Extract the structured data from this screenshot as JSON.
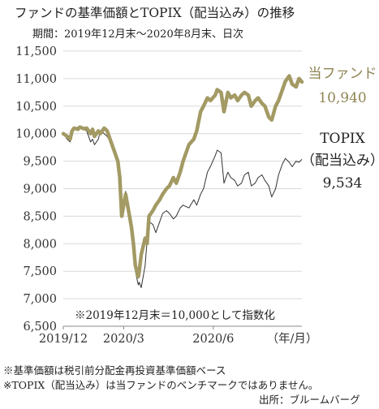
{
  "title": "ファンドの基準価額とTOPIX（配当込み）の推移",
  "subtitle": "期間：2019年12月末～2020年8月末、日次",
  "note": "※2019年12月末＝10,000として指数化",
  "footnotes": [
    "※基準価額は税引前分配金再投資基準価額ベース",
    "※TOPIX（配当込み）は当ファンドのベンチマークではありません。"
  ],
  "source": "出所：ブルームバーグ",
  "colors": {
    "fund": "#a39a64",
    "topix": "#333333",
    "grid": "#d9d9d9"
  },
  "chart_data": {
    "type": "line",
    "yticks": [
      "11,500",
      "11,000",
      "10,500",
      "10,000",
      "9,500",
      "9,000",
      "8,500",
      "8,000",
      "7,500",
      "7,000",
      "6,500"
    ],
    "ylim": [
      6500,
      11500
    ],
    "xlim": [
      "2019-12-30",
      "2020-08-31"
    ],
    "xticks": [
      {
        "date": "2019-12-30",
        "label": "2019/12"
      },
      {
        "date": "2020-03-01",
        "label": "2020/3"
      },
      {
        "date": "2020-06-01",
        "label": "2020/6"
      }
    ],
    "x_unit_label": "（年/月）",
    "series": [
      {
        "name": "当ファンド",
        "end_value_label": "10,940",
        "points": [
          [
            "2019-12-30",
            10000
          ],
          [
            "2020-01-03",
            9950
          ],
          [
            "2020-01-06",
            9900
          ],
          [
            "2020-01-08",
            10050
          ],
          [
            "2020-01-10",
            10100
          ],
          [
            "2020-01-14",
            10080
          ],
          [
            "2020-01-16",
            10120
          ],
          [
            "2020-01-20",
            10090
          ],
          [
            "2020-01-23",
            10100
          ],
          [
            "2020-01-27",
            10000
          ],
          [
            "2020-01-29",
            10080
          ],
          [
            "2020-01-31",
            9950
          ],
          [
            "2020-02-04",
            10050
          ],
          [
            "2020-02-06",
            10000
          ],
          [
            "2020-02-10",
            10100
          ],
          [
            "2020-02-13",
            10050
          ],
          [
            "2020-02-18",
            9800
          ],
          [
            "2020-02-20",
            9700
          ],
          [
            "2020-02-24",
            9500
          ],
          [
            "2020-02-26",
            9200
          ],
          [
            "2020-02-28",
            8500
          ],
          [
            "2020-03-03",
            8900
          ],
          [
            "2020-03-05",
            8700
          ],
          [
            "2020-03-09",
            8300
          ],
          [
            "2020-03-11",
            8000
          ],
          [
            "2020-03-13",
            7600
          ],
          [
            "2020-03-16",
            7400
          ],
          [
            "2020-03-17",
            7500
          ],
          [
            "2020-03-19",
            7800
          ],
          [
            "2020-03-23",
            8100
          ],
          [
            "2020-03-25",
            8000
          ],
          [
            "2020-03-27",
            8500
          ],
          [
            "2020-03-31",
            8600
          ],
          [
            "2020-04-03",
            8700
          ],
          [
            "2020-04-07",
            8800
          ],
          [
            "2020-04-10",
            8900
          ],
          [
            "2020-04-14",
            9000
          ],
          [
            "2020-04-17",
            9050
          ],
          [
            "2020-04-21",
            9200
          ],
          [
            "2020-04-24",
            9100
          ],
          [
            "2020-04-28",
            9300
          ],
          [
            "2020-05-01",
            9500
          ],
          [
            "2020-05-07",
            9800
          ],
          [
            "2020-05-12",
            9900
          ],
          [
            "2020-05-15",
            10050
          ],
          [
            "2020-05-19",
            10400
          ],
          [
            "2020-05-22",
            10500
          ],
          [
            "2020-05-26",
            10650
          ],
          [
            "2020-05-29",
            10600
          ],
          [
            "2020-06-03",
            10700
          ],
          [
            "2020-06-05",
            10800
          ],
          [
            "2020-06-09",
            10750
          ],
          [
            "2020-06-12",
            10400
          ],
          [
            "2020-06-16",
            10750
          ],
          [
            "2020-06-19",
            10650
          ],
          [
            "2020-06-23",
            10700
          ],
          [
            "2020-06-26",
            10600
          ],
          [
            "2020-06-30",
            10700
          ],
          [
            "2020-07-03",
            10750
          ],
          [
            "2020-07-07",
            10700
          ],
          [
            "2020-07-10",
            10500
          ],
          [
            "2020-07-14",
            10600
          ],
          [
            "2020-07-17",
            10650
          ],
          [
            "2020-07-21",
            10550
          ],
          [
            "2020-07-24",
            10500
          ],
          [
            "2020-07-28",
            10300
          ],
          [
            "2020-07-31",
            10250
          ],
          [
            "2020-08-04",
            10500
          ],
          [
            "2020-08-07",
            10600
          ],
          [
            "2020-08-11",
            10800
          ],
          [
            "2020-08-14",
            10950
          ],
          [
            "2020-08-18",
            11050
          ],
          [
            "2020-08-21",
            10900
          ],
          [
            "2020-08-25",
            10850
          ],
          [
            "2020-08-28",
            11000
          ],
          [
            "2020-08-31",
            10940
          ]
        ]
      },
      {
        "name": "TOPIX（配当込み）",
        "name_lines": [
          "TOPIX",
          "（配当込み）"
        ],
        "end_value_label": "9,534",
        "points": [
          [
            "2019-12-30",
            10000
          ],
          [
            "2020-01-03",
            9900
          ],
          [
            "2020-01-06",
            9850
          ],
          [
            "2020-01-08",
            10050
          ],
          [
            "2020-01-10",
            10100
          ],
          [
            "2020-01-14",
            10120
          ],
          [
            "2020-01-16",
            10100
          ],
          [
            "2020-01-20",
            10080
          ],
          [
            "2020-01-23",
            10050
          ],
          [
            "2020-01-27",
            9850
          ],
          [
            "2020-01-29",
            9900
          ],
          [
            "2020-01-31",
            9800
          ],
          [
            "2020-02-04",
            9900
          ],
          [
            "2020-02-06",
            10050
          ],
          [
            "2020-02-10",
            10000
          ],
          [
            "2020-02-13",
            9950
          ],
          [
            "2020-02-18",
            9800
          ],
          [
            "2020-02-20",
            9750
          ],
          [
            "2020-02-24",
            9400
          ],
          [
            "2020-02-26",
            9000
          ],
          [
            "2020-02-28",
            8550
          ],
          [
            "2020-03-03",
            8950
          ],
          [
            "2020-03-05",
            8800
          ],
          [
            "2020-03-09",
            8200
          ],
          [
            "2020-03-11",
            7900
          ],
          [
            "2020-03-13",
            7500
          ],
          [
            "2020-03-16",
            7250
          ],
          [
            "2020-03-17",
            7300
          ],
          [
            "2020-03-19",
            7200
          ],
          [
            "2020-03-23",
            7600
          ],
          [
            "2020-03-25",
            8050
          ],
          [
            "2020-03-27",
            8400
          ],
          [
            "2020-03-31",
            8350
          ],
          [
            "2020-04-03",
            8200
          ],
          [
            "2020-04-07",
            8400
          ],
          [
            "2020-04-10",
            8550
          ],
          [
            "2020-04-14",
            8600
          ],
          [
            "2020-04-17",
            8550
          ],
          [
            "2020-04-21",
            8450
          ],
          [
            "2020-04-24",
            8500
          ],
          [
            "2020-04-28",
            8650
          ],
          [
            "2020-05-01",
            8700
          ],
          [
            "2020-05-07",
            8650
          ],
          [
            "2020-05-12",
            8800
          ],
          [
            "2020-05-15",
            8700
          ],
          [
            "2020-05-19",
            8900
          ],
          [
            "2020-05-22",
            9000
          ],
          [
            "2020-05-26",
            9300
          ],
          [
            "2020-05-29",
            9400
          ],
          [
            "2020-06-03",
            9600
          ],
          [
            "2020-06-05",
            9700
          ],
          [
            "2020-06-09",
            9650
          ],
          [
            "2020-06-12",
            9100
          ],
          [
            "2020-06-16",
            9300
          ],
          [
            "2020-06-19",
            9200
          ],
          [
            "2020-06-23",
            9150
          ],
          [
            "2020-06-26",
            9050
          ],
          [
            "2020-06-30",
            9100
          ],
          [
            "2020-07-03",
            9250
          ],
          [
            "2020-07-07",
            9300
          ],
          [
            "2020-07-10",
            9050
          ],
          [
            "2020-07-14",
            9100
          ],
          [
            "2020-07-17",
            9200
          ],
          [
            "2020-07-21",
            9250
          ],
          [
            "2020-07-24",
            9150
          ],
          [
            "2020-07-28",
            9050
          ],
          [
            "2020-07-31",
            8850
          ],
          [
            "2020-08-04",
            9000
          ],
          [
            "2020-08-07",
            9250
          ],
          [
            "2020-08-11",
            9450
          ],
          [
            "2020-08-14",
            9550
          ],
          [
            "2020-08-18",
            9480
          ],
          [
            "2020-08-21",
            9400
          ],
          [
            "2020-08-25",
            9500
          ],
          [
            "2020-08-28",
            9480
          ],
          [
            "2020-08-31",
            9534
          ]
        ]
      }
    ]
  }
}
